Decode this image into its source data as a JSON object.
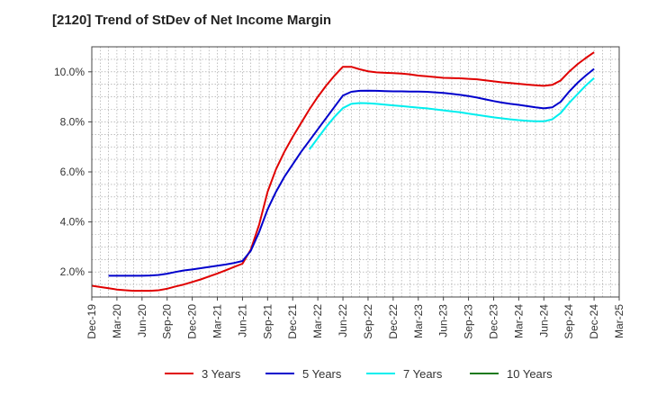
{
  "chart_data": {
    "type": "line",
    "title": "[2120]  Trend of StDev of Net Income Margin",
    "xlabel": "",
    "ylabel": "",
    "x_ticks": [
      "Dec-19",
      "Mar-20",
      "Jun-20",
      "Sep-20",
      "Dec-20",
      "Mar-21",
      "Jun-21",
      "Sep-21",
      "Dec-21",
      "Mar-22",
      "Jun-22",
      "Sep-22",
      "Dec-22",
      "Mar-23",
      "Jun-23",
      "Sep-23",
      "Dec-23",
      "Mar-24",
      "Jun-24",
      "Sep-24",
      "Dec-24",
      "Mar-25"
    ],
    "y_ticks": [
      "2.0%",
      "4.0%",
      "6.0%",
      "8.0%",
      "10.0%"
    ],
    "y_tick_values": [
      2,
      4,
      6,
      8,
      10
    ],
    "ylim": [
      1.0,
      11.0
    ],
    "grid": true,
    "legend_position": "bottom",
    "series": [
      {
        "name": "3 Years",
        "color": "#e00000",
        "points": [
          [
            "Dec-19",
            1.45
          ],
          [
            "Jan-20",
            1.4
          ],
          [
            "Feb-20",
            1.35
          ],
          [
            "Mar-20",
            1.3
          ],
          [
            "Apr-20",
            1.27
          ],
          [
            "May-20",
            1.25
          ],
          [
            "Jun-20",
            1.25
          ],
          [
            "Jul-20",
            1.25
          ],
          [
            "Aug-20",
            1.27
          ],
          [
            "Sep-20",
            1.33
          ],
          [
            "Oct-20",
            1.42
          ],
          [
            "Nov-20",
            1.5
          ],
          [
            "Dec-20",
            1.6
          ],
          [
            "Jan-21",
            1.7
          ],
          [
            "Feb-21",
            1.82
          ],
          [
            "Mar-21",
            1.94
          ],
          [
            "Apr-21",
            2.07
          ],
          [
            "May-21",
            2.2
          ],
          [
            "Jun-21",
            2.33
          ],
          [
            "Jul-21",
            2.9
          ],
          [
            "Aug-21",
            3.9
          ],
          [
            "Sep-21",
            5.2
          ],
          [
            "Oct-21",
            6.1
          ],
          [
            "Nov-21",
            6.8
          ],
          [
            "Dec-21",
            7.4
          ],
          [
            "Jan-22",
            7.95
          ],
          [
            "Feb-22",
            8.5
          ],
          [
            "Mar-22",
            9.0
          ],
          [
            "Apr-22",
            9.45
          ],
          [
            "May-22",
            9.85
          ],
          [
            "Jun-22",
            10.2
          ],
          [
            "Jul-22",
            10.2
          ],
          [
            "Aug-22",
            10.1
          ],
          [
            "Sep-22",
            10.02
          ],
          [
            "Oct-22",
            9.98
          ],
          [
            "Nov-22",
            9.96
          ],
          [
            "Dec-22",
            9.95
          ],
          [
            "Jan-23",
            9.93
          ],
          [
            "Feb-23",
            9.9
          ],
          [
            "Mar-23",
            9.85
          ],
          [
            "Apr-23",
            9.82
          ],
          [
            "May-23",
            9.79
          ],
          [
            "Jun-23",
            9.76
          ],
          [
            "Jul-23",
            9.75
          ],
          [
            "Aug-23",
            9.74
          ],
          [
            "Sep-23",
            9.72
          ],
          [
            "Oct-23",
            9.7
          ],
          [
            "Nov-23",
            9.66
          ],
          [
            "Dec-23",
            9.62
          ],
          [
            "Jan-24",
            9.58
          ],
          [
            "Feb-24",
            9.55
          ],
          [
            "Mar-24",
            9.52
          ],
          [
            "Apr-24",
            9.49
          ],
          [
            "May-24",
            9.46
          ],
          [
            "Jun-24",
            9.44
          ],
          [
            "Jul-24",
            9.48
          ],
          [
            "Aug-24",
            9.65
          ],
          [
            "Sep-24",
            10.0
          ],
          [
            "Oct-24",
            10.3
          ],
          [
            "Nov-24",
            10.55
          ],
          [
            "Dec-24",
            10.78
          ]
        ]
      },
      {
        "name": "5 Years",
        "color": "#0000cc",
        "points": [
          [
            "Feb-20",
            1.85
          ],
          [
            "Mar-20",
            1.85
          ],
          [
            "Apr-20",
            1.85
          ],
          [
            "May-20",
            1.85
          ],
          [
            "Jun-20",
            1.85
          ],
          [
            "Jul-20",
            1.86
          ],
          [
            "Aug-20",
            1.88
          ],
          [
            "Sep-20",
            1.93
          ],
          [
            "Oct-20",
            2.0
          ],
          [
            "Nov-20",
            2.06
          ],
          [
            "Dec-20",
            2.1
          ],
          [
            "Jan-21",
            2.15
          ],
          [
            "Feb-21",
            2.2
          ],
          [
            "Mar-21",
            2.25
          ],
          [
            "Apr-21",
            2.3
          ],
          [
            "May-21",
            2.36
          ],
          [
            "Jun-21",
            2.44
          ],
          [
            "Jul-21",
            2.85
          ],
          [
            "Aug-21",
            3.6
          ],
          [
            "Sep-21",
            4.5
          ],
          [
            "Oct-21",
            5.2
          ],
          [
            "Nov-21",
            5.8
          ],
          [
            "Dec-21",
            6.3
          ],
          [
            "Jan-22",
            6.8
          ],
          [
            "Feb-22",
            7.25
          ],
          [
            "Mar-22",
            7.7
          ],
          [
            "Apr-22",
            8.15
          ],
          [
            "May-22",
            8.6
          ],
          [
            "Jun-22",
            9.05
          ],
          [
            "Jul-22",
            9.2
          ],
          [
            "Aug-22",
            9.24
          ],
          [
            "Sep-22",
            9.25
          ],
          [
            "Oct-22",
            9.24
          ],
          [
            "Nov-22",
            9.23
          ],
          [
            "Dec-22",
            9.22
          ],
          [
            "Jan-23",
            9.22
          ],
          [
            "Feb-23",
            9.21
          ],
          [
            "Mar-23",
            9.21
          ],
          [
            "Apr-23",
            9.2
          ],
          [
            "May-23",
            9.18
          ],
          [
            "Jun-23",
            9.16
          ],
          [
            "Jul-23",
            9.12
          ],
          [
            "Aug-23",
            9.08
          ],
          [
            "Sep-23",
            9.03
          ],
          [
            "Oct-23",
            8.97
          ],
          [
            "Nov-23",
            8.9
          ],
          [
            "Dec-23",
            8.83
          ],
          [
            "Jan-24",
            8.77
          ],
          [
            "Feb-24",
            8.72
          ],
          [
            "Mar-24",
            8.68
          ],
          [
            "Apr-24",
            8.63
          ],
          [
            "May-24",
            8.58
          ],
          [
            "Jun-24",
            8.54
          ],
          [
            "Jul-24",
            8.58
          ],
          [
            "Aug-24",
            8.8
          ],
          [
            "Sep-24",
            9.2
          ],
          [
            "Oct-24",
            9.55
          ],
          [
            "Nov-24",
            9.85
          ],
          [
            "Dec-24",
            10.12
          ]
        ]
      },
      {
        "name": "7 Years",
        "color": "#00eeee",
        "points": [
          [
            "Feb-22",
            6.9
          ],
          [
            "Mar-22",
            7.35
          ],
          [
            "Apr-22",
            7.8
          ],
          [
            "May-22",
            8.2
          ],
          [
            "Jun-22",
            8.55
          ],
          [
            "Jul-22",
            8.72
          ],
          [
            "Aug-22",
            8.75
          ],
          [
            "Sep-22",
            8.74
          ],
          [
            "Oct-22",
            8.72
          ],
          [
            "Nov-22",
            8.69
          ],
          [
            "Dec-22",
            8.66
          ],
          [
            "Jan-23",
            8.63
          ],
          [
            "Feb-23",
            8.6
          ],
          [
            "Mar-23",
            8.57
          ],
          [
            "Apr-23",
            8.54
          ],
          [
            "May-23",
            8.5
          ],
          [
            "Jun-23",
            8.46
          ],
          [
            "Jul-23",
            8.42
          ],
          [
            "Aug-23",
            8.38
          ],
          [
            "Sep-23",
            8.33
          ],
          [
            "Oct-23",
            8.28
          ],
          [
            "Nov-23",
            8.23
          ],
          [
            "Dec-23",
            8.18
          ],
          [
            "Jan-24",
            8.14
          ],
          [
            "Feb-24",
            8.1
          ],
          [
            "Mar-24",
            8.07
          ],
          [
            "Apr-24",
            8.04
          ],
          [
            "May-24",
            8.02
          ],
          [
            "Jun-24",
            8.02
          ],
          [
            "Jul-24",
            8.1
          ],
          [
            "Aug-24",
            8.35
          ],
          [
            "Sep-24",
            8.75
          ],
          [
            "Oct-24",
            9.1
          ],
          [
            "Nov-24",
            9.45
          ],
          [
            "Dec-24",
            9.75
          ]
        ]
      },
      {
        "name": "10 Years",
        "color": "#1a7a1a",
        "points": []
      }
    ]
  }
}
